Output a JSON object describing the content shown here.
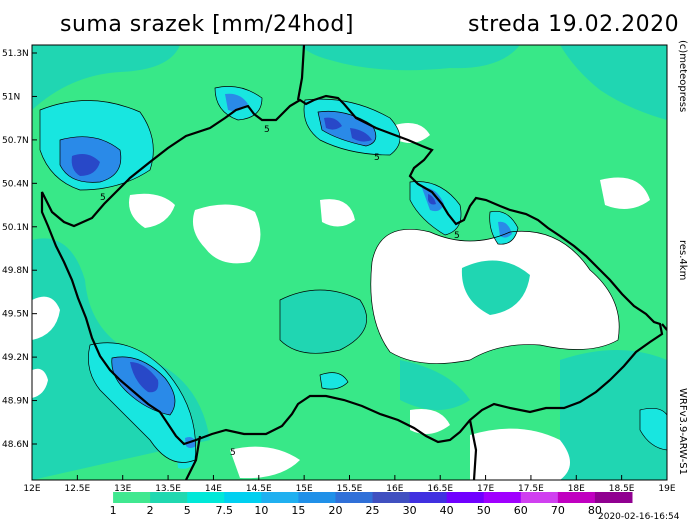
{
  "title": {
    "left": "suma srazek [mm/24hod]",
    "right": "streda 19.02.2020"
  },
  "side_labels": {
    "brand": "(c)meteopress",
    "resolution": "res.4km",
    "model": "WRFv3.9-ARW-S1"
  },
  "footer": {
    "timestamp": "2020-02-16-16:54"
  },
  "axes": {
    "lon_ticks": [
      "12E",
      "12.5E",
      "13E",
      "13.5E",
      "14E",
      "14.5E",
      "15E",
      "15.5E",
      "16E",
      "16.5E",
      "17E",
      "17.5E",
      "18E",
      "18.5E",
      "19E"
    ],
    "lat_ticks": [
      "51.3N",
      "51N",
      "50.7N",
      "50.4N",
      "50.1N",
      "49.8N",
      "49.5N",
      "49.2N",
      "48.9N",
      "48.6N"
    ]
  },
  "legend": {
    "labels": [
      "1",
      "2",
      "5",
      "7.5",
      "10",
      "15",
      "20",
      "25",
      "30",
      "40",
      "50",
      "60",
      "70",
      "80"
    ],
    "colors": [
      "#ffffff",
      "#40e890",
      "#20d8b0",
      "#00e8d8",
      "#00d0f0",
      "#20b0f0",
      "#2090e8",
      "#3070d8",
      "#4050c0",
      "#4030e0",
      "#7000ff",
      "#a000ff",
      "#d040f0",
      "#c000c0",
      "#900090"
    ]
  },
  "map_contour_labels": {
    "a": "5",
    "b": "5",
    "c": "5",
    "d": "5",
    "e": "5"
  },
  "colors": {
    "background": "#ffffff",
    "light_green": "#38e888",
    "teal": "#20d6b2",
    "cyan": "#18e6e0",
    "blue": "#2a8ae8",
    "dark_blue": "#2848c8",
    "border": "#000000"
  }
}
